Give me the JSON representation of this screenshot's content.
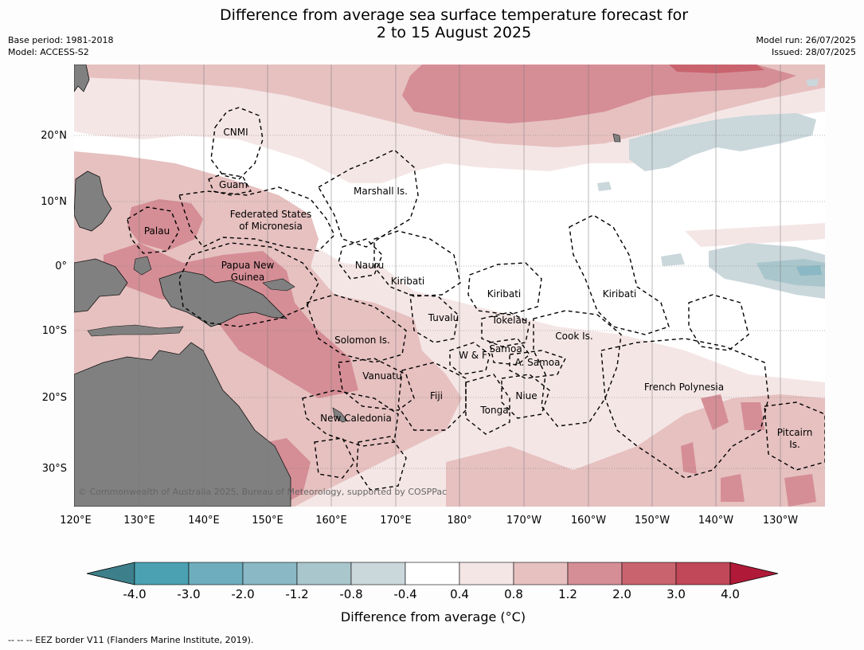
{
  "header": {
    "title_line1": "Difference from average sea surface temperature forecast for",
    "title_line2": "2 to 15 August 2025",
    "base_period": "Base period: 1981-2018",
    "model": "Model: ACCESS-S2",
    "model_run": "Model run: 26/07/2025",
    "issued": "Issued: 28/07/2025"
  },
  "map": {
    "latitude_labels": [
      "20°N",
      "10°N",
      "0°",
      "10°S",
      "20°S",
      "30°S"
    ],
    "longitude_labels": [
      "120°E",
      "130°E",
      "140°E",
      "150°E",
      "160°E",
      "170°E",
      "180°",
      "170°W",
      "160°W",
      "150°W",
      "140°W",
      "130°W"
    ],
    "region_labels": {
      "cnmi": "CNMI",
      "guam": "Guam",
      "marshall": "Marshall Is.",
      "fsm_1": "Federated States",
      "fsm_2": "of Micronesia",
      "palau": "Palau",
      "nauru": "Nauru",
      "png_1": "Papua New",
      "png_2": "Guinea",
      "kiribati_west": "Kiribati",
      "kiribati_central": "Kiribati",
      "kiribati_east": "Kiribati",
      "tuvalu": "Tuvalu",
      "tokelau": "Tokelau",
      "solomon": "Solomon Is.",
      "wf": "W & F",
      "samoa": "Samoa",
      "amsamoa": "A. Samoa",
      "cook": "Cook Is.",
      "vanuatu": "Vanuatu",
      "fiji": "Fiji",
      "niue": "Niue",
      "tonga": "Tonga",
      "new_caledonia": "New Caledonia",
      "french_polynesia": "French Polynesia",
      "pitcairn_1": "Pitcairn",
      "pitcairn_2": "Is."
    },
    "copyright": "© Commonwealth of Australia 2025, Bureau of Meteorology, supported by COSPPac"
  },
  "legend": {
    "title": "Difference from average (°C)",
    "tick_labels": [
      "-4.0",
      "-3.0",
      "-2.0",
      "-1.2",
      "-0.8",
      "-0.4",
      "0.4",
      "0.8",
      "1.2",
      "2.0",
      "3.0",
      "4.0"
    ],
    "colors": [
      "#3d7f8a",
      "#4ba1b2",
      "#6eadbd",
      "#8ab8c4",
      "#a9c6cc",
      "#cad7db",
      "#ffffff",
      "#f5e6e6",
      "#e6c1c0",
      "#d58e96",
      "#c9646f",
      "#c04858",
      "#b01a38"
    ]
  },
  "footer": {
    "note": "--  --  -- EEZ border V11 (Flanders Marine Institute, 2019)."
  }
}
